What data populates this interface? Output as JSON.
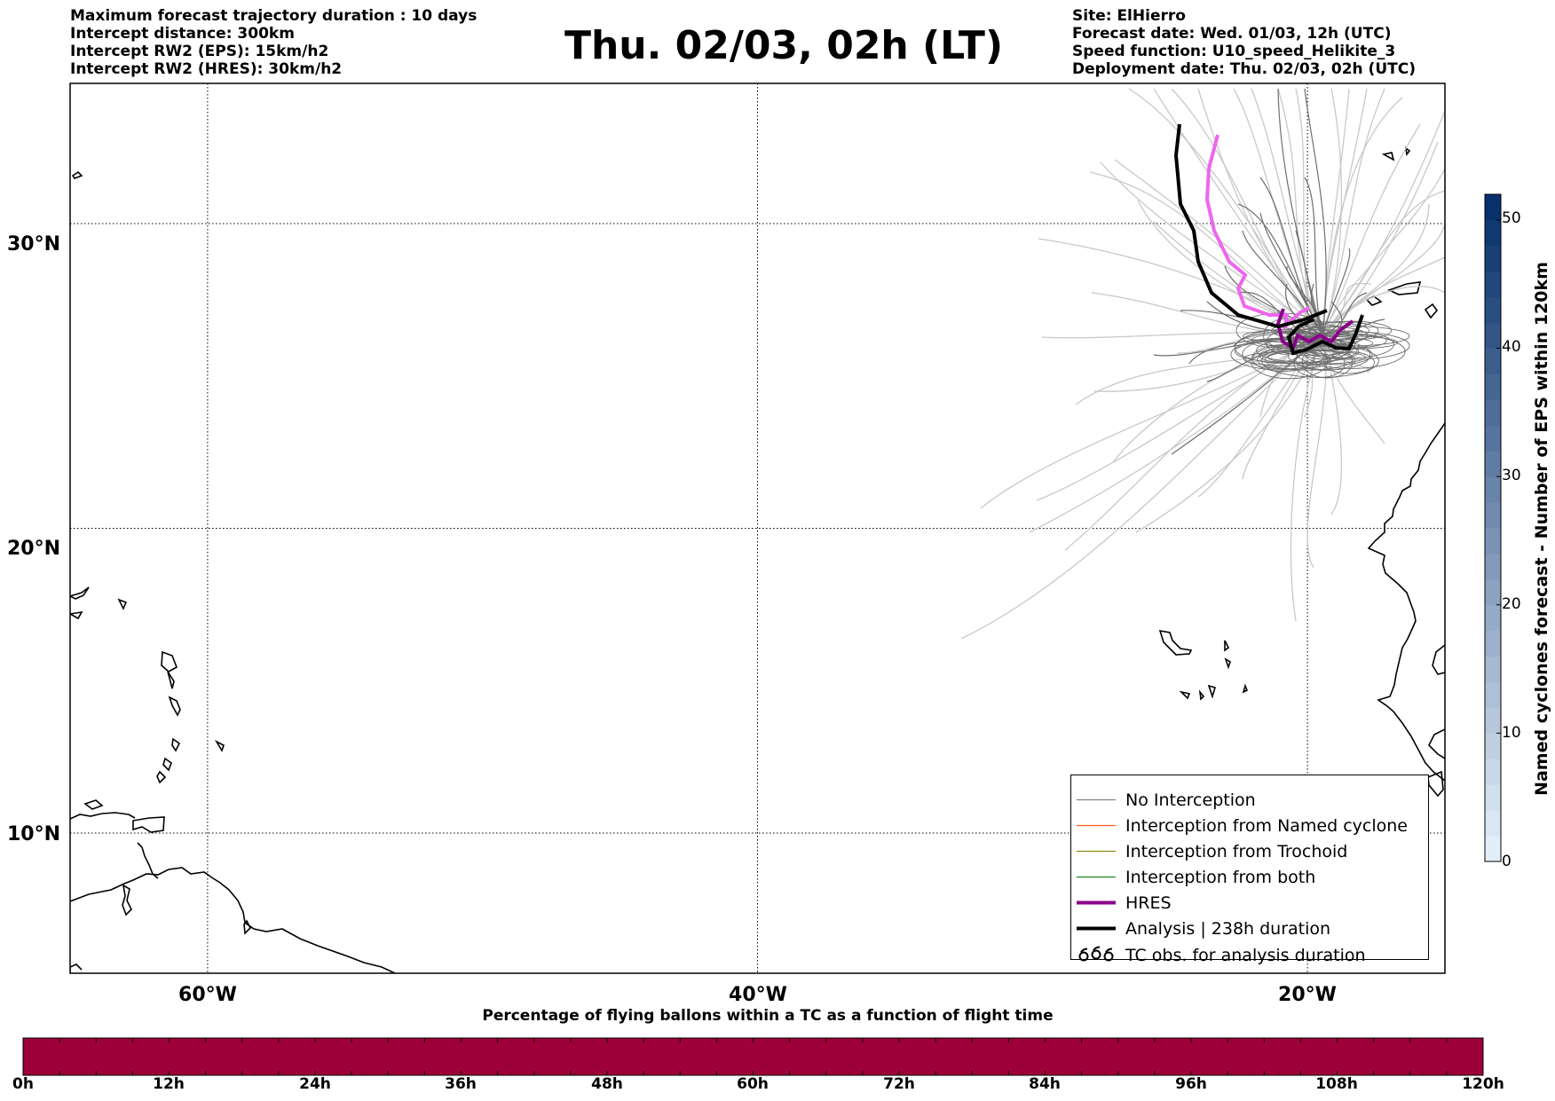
{
  "header": {
    "left": [
      "Maximum forecast trajectory duration : 10 days",
      "Intercept distance: 300km",
      "Intercept RW2 (EPS):  15km/h2",
      "Intercept RW2 (HRES): 30km/h2"
    ],
    "title": "Thu. 02/03, 02h (LT)",
    "right": [
      "Site: ElHierro",
      "Forecast date: Wed. 01/03, 12h (UTC)",
      "Speed function: U10_speed_Helikite_3",
      "Deployment date: Thu. 02/03, 02h (UTC)"
    ]
  },
  "map": {
    "lat_labels": [
      "30°N",
      "20°N",
      "10°N"
    ],
    "lon_labels": [
      "60°W",
      "40°W",
      "20°W"
    ],
    "lat_values": [
      30,
      20,
      10
    ],
    "lon_values": [
      -60,
      -40,
      -20
    ],
    "lat_range": [
      5.4,
      34.6
    ],
    "lon_range": [
      -65,
      -15
    ]
  },
  "legend": {
    "items": [
      {
        "label": "No Interception",
        "color": "#808080",
        "style": "thin"
      },
      {
        "label": "Interception from Named cyclone",
        "color": "#ff5a1f",
        "style": "thin"
      },
      {
        "label": "Interception from Trochoid",
        "color": "#8b8b1a",
        "style": "thin"
      },
      {
        "label": "Interception from both",
        "color": "#1e8a1e",
        "style": "thin"
      },
      {
        "label": "HRES",
        "color": "#8b008b",
        "style": "thick"
      },
      {
        "label": "Analysis | 238h duration",
        "color": "#000000",
        "style": "thick"
      },
      {
        "label": "TC obs. for analysis duration",
        "color": "#000000",
        "style": "cyclone-icon"
      }
    ]
  },
  "colorbar_right": {
    "title": "Named cyclones forecast - Number of EPS within 120km",
    "ticks": [
      "0",
      "10",
      "20",
      "30",
      "40",
      "50"
    ],
    "tick_values": [
      0,
      10,
      20,
      30,
      40,
      50
    ],
    "range": [
      0,
      52
    ],
    "color_low": "#e3eef9",
    "color_high": "#08306b"
  },
  "colorbar_bottom": {
    "title": "Percentage of flying ballons within a TC as a function of flight time",
    "ticks": [
      "0h",
      "12h",
      "24h",
      "36h",
      "48h",
      "60h",
      "72h",
      "84h",
      "96h",
      "108h",
      "120h"
    ],
    "fill_color": "#9e003a"
  },
  "colors": {
    "eps_light": "#c8c8c8",
    "eps_dark": "#6e6e6e",
    "hres": "#8b008b",
    "analysis": "#000000",
    "hres_pink": "#ee66ee"
  }
}
